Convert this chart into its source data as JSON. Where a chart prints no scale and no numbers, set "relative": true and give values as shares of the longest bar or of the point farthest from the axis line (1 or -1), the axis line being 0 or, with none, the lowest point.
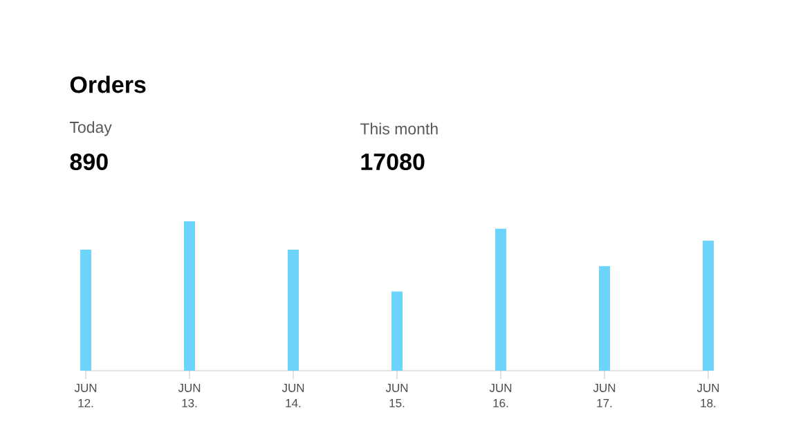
{
  "chart_data": {
    "type": "bar",
    "title": "Orders",
    "annotations": [
      "Today",
      "890",
      "This month",
      "17080"
    ],
    "categories": [
      "JUN 12.",
      "JUN 13.",
      "JUN 14.",
      "JUN 15.",
      "JUN 16.",
      "JUN 17.",
      "JUN 18."
    ],
    "values": [
      0.81,
      1,
      0.81,
      0.53,
      0.95,
      0.7,
      0.87
    ],
    "relative": true,
    "color": "#6dd5fb"
  }
}
